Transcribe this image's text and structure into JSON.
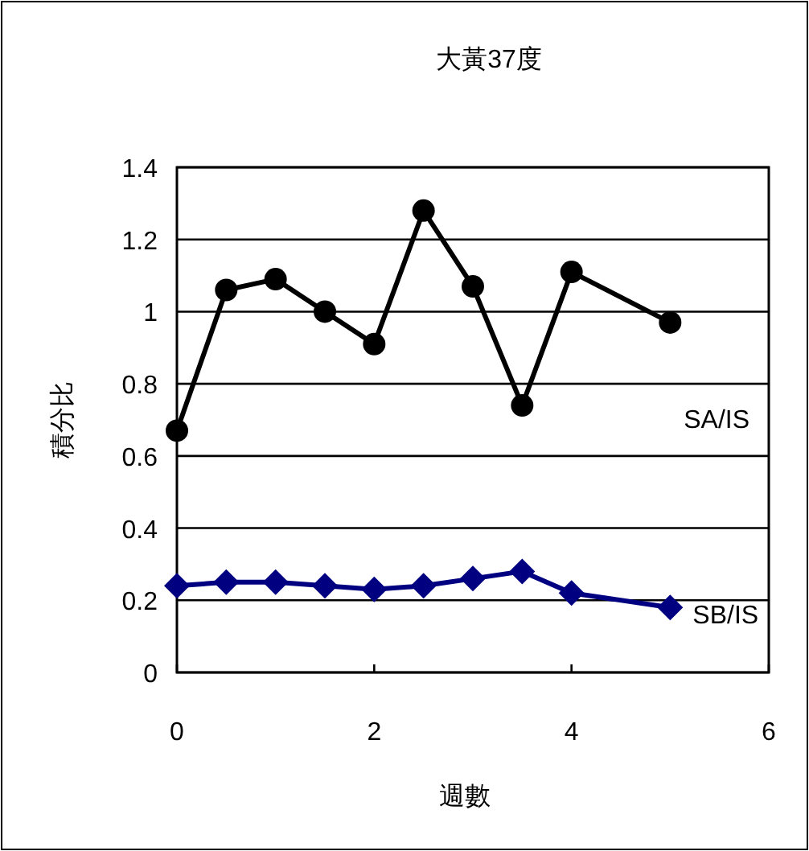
{
  "chart_data": {
    "type": "line",
    "title": "大黃37度",
    "xlabel": "週數",
    "ylabel": "積分比",
    "xlim": [
      0,
      6
    ],
    "xticks": [
      0,
      2,
      4,
      6
    ],
    "ylim": [
      0,
      1.4
    ],
    "yticks": [
      0,
      0.2,
      0.4,
      0.6,
      0.8,
      1,
      1.2,
      1.4
    ],
    "grid": "y",
    "legend": false,
    "series": [
      {
        "name": "SA/IS",
        "color": "#000000",
        "marker": "circle",
        "x": [
          0,
          0.5,
          1,
          1.5,
          2,
          2.5,
          3,
          3.5,
          4,
          5
        ],
        "values": [
          0.67,
          1.06,
          1.09,
          1.0,
          0.91,
          1.28,
          1.07,
          0.74,
          1.11,
          0.97
        ]
      },
      {
        "name": "SB/IS",
        "color": "#000080",
        "marker": "diamond",
        "x": [
          0,
          0.5,
          1,
          1.5,
          2,
          2.5,
          3,
          3.5,
          4,
          5
        ],
        "values": [
          0.24,
          0.25,
          0.25,
          0.24,
          0.23,
          0.24,
          0.26,
          0.28,
          0.22,
          0.18
        ]
      }
    ]
  }
}
